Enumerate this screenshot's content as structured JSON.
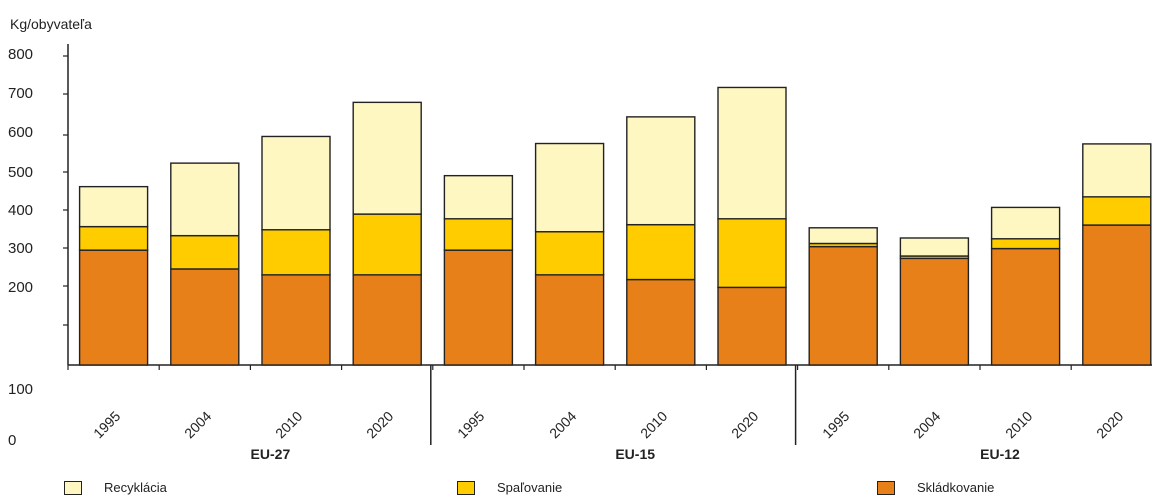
{
  "chart_data": {
    "type": "bar",
    "stacked": true,
    "ylabel": "Kg/obyvateľa",
    "y_tick_labels": [
      "800",
      "700",
      "600",
      "500",
      "400",
      "300",
      "200",
      "100",
      "0"
    ],
    "groups": [
      "EU-27",
      "EU-15",
      "EU-12"
    ],
    "categories": [
      "1995",
      "2004",
      "2010",
      "2020",
      "1995",
      "2004",
      "2010",
      "2020",
      "1995",
      "2004",
      "2010",
      "2020"
    ],
    "category_group": [
      "EU-27",
      "EU-27",
      "EU-27",
      "EU-27",
      "EU-15",
      "EU-15",
      "EU-15",
      "EU-15",
      "EU-12",
      "EU-12",
      "EU-12",
      "EU-12"
    ],
    "series": [
      {
        "name": "Skládkovanie",
        "color": "#E8801A",
        "values": [
          293,
          245,
          230,
          230,
          293,
          230,
          218,
          198,
          302,
          272,
          297,
          357
        ]
      },
      {
        "name": "Spaľovanie",
        "color": "#FFCC00",
        "values": [
          60,
          85,
          115,
          155,
          80,
          110,
          140,
          175,
          8,
          6,
          25,
          72
        ]
      },
      {
        "name": "Recyklácia",
        "color": "#FFF7C2",
        "values": [
          102,
          185,
          238,
          285,
          110,
          225,
          275,
          335,
          40,
          46,
          80,
          135
        ]
      }
    ],
    "legend_position": "bottom",
    "grid": false
  },
  "ylabel_text": "Kg/obyvateľa",
  "legend": [
    {
      "name": "Recyklácia",
      "color": "#FFF7C2"
    },
    {
      "name": "Spaľovanie",
      "color": "#FFCC00"
    },
    {
      "name": "Skládkovanie",
      "color": "#E8801A"
    }
  ]
}
